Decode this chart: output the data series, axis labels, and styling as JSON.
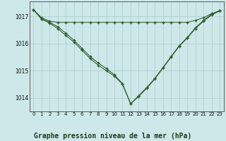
{
  "background_color": "#cde8e8",
  "grid_color": "#aacccc",
  "line_color": "#2d5a2d",
  "title": "Graphe pression niveau de la mer (hPa)",
  "title_fontsize": 7,
  "xlim": [
    -0.5,
    23.5
  ],
  "ylim": [
    1013.5,
    1017.55
  ],
  "yticks": [
    1014,
    1015,
    1016,
    1017
  ],
  "xticks": [
    0,
    1,
    2,
    3,
    4,
    5,
    6,
    7,
    8,
    9,
    10,
    11,
    12,
    13,
    14,
    15,
    16,
    17,
    18,
    19,
    20,
    21,
    22,
    23
  ],
  "line1_x": [
    0,
    1,
    2,
    3,
    4,
    5,
    6,
    7,
    8,
    9,
    10,
    11,
    12,
    13,
    14,
    15,
    16,
    17,
    18,
    19,
    20,
    21,
    22,
    23
  ],
  "line1_y": [
    1017.25,
    1016.95,
    1016.82,
    1016.78,
    1016.78,
    1016.78,
    1016.78,
    1016.78,
    1016.78,
    1016.78,
    1016.78,
    1016.78,
    1016.78,
    1016.78,
    1016.78,
    1016.78,
    1016.78,
    1016.78,
    1016.78,
    1016.78,
    1016.85,
    1016.95,
    1017.1,
    1017.2
  ],
  "line2_x": [
    0,
    1,
    2,
    3,
    4,
    5,
    6,
    7,
    8,
    9,
    10,
    11,
    12,
    13,
    14,
    15,
    16,
    17,
    18,
    19,
    20,
    21,
    22,
    23
  ],
  "line2_y": [
    1017.25,
    1016.9,
    1016.75,
    1016.55,
    1016.3,
    1016.05,
    1015.75,
    1015.45,
    1015.2,
    1015.0,
    1014.8,
    1014.5,
    1013.78,
    1014.05,
    1014.35,
    1014.7,
    1015.1,
    1015.5,
    1015.9,
    1016.2,
    1016.55,
    1016.82,
    1017.05,
    1017.2
  ],
  "line3_x": [
    0,
    1,
    2,
    3,
    4,
    5,
    6,
    7,
    8,
    9,
    10,
    11,
    12,
    13,
    14,
    15,
    16,
    17,
    18,
    19,
    20,
    21,
    22,
    23
  ],
  "line3_y": [
    1017.25,
    1016.9,
    1016.78,
    1016.62,
    1016.38,
    1016.12,
    1015.82,
    1015.52,
    1015.28,
    1015.08,
    1014.85,
    1014.52,
    1013.78,
    1014.08,
    1014.38,
    1014.72,
    1015.12,
    1015.52,
    1015.92,
    1016.22,
    1016.58,
    1016.85,
    1017.08,
    1017.22
  ]
}
